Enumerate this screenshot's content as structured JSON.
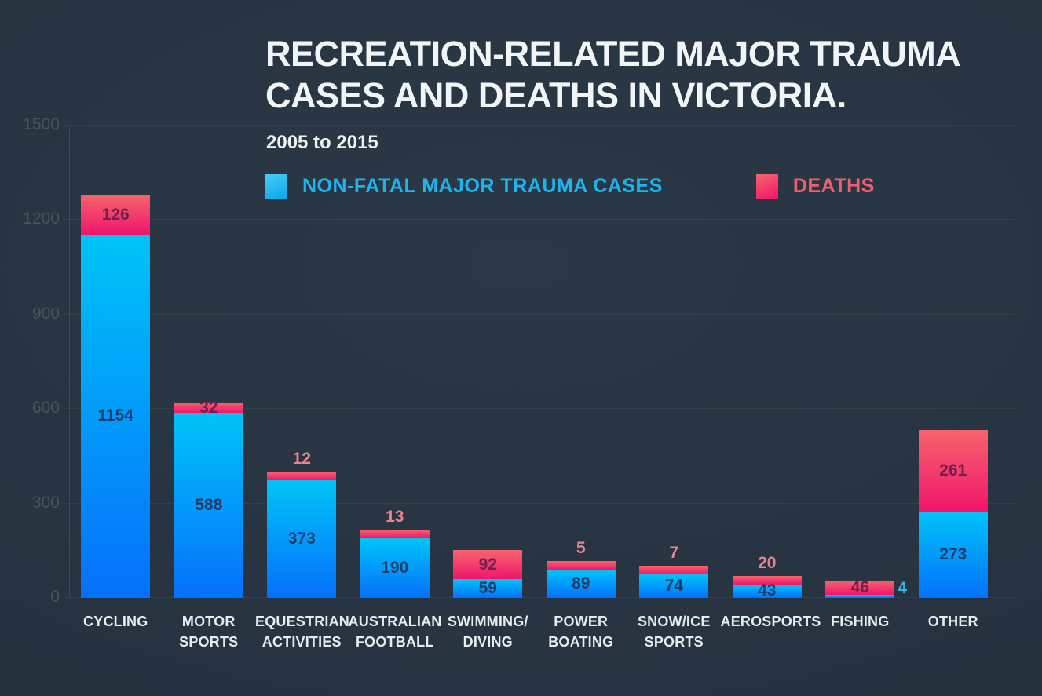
{
  "title": {
    "line1": "RECREATION-RELATED MAJOR TRAUMA",
    "line2": "CASES AND DEATHS IN VICTORIA."
  },
  "subtitle": "2005 to 2015",
  "legend": {
    "cases_label": "NON-FATAL MAJOR TRAUMA CASES",
    "deaths_label": "DEATHS"
  },
  "colors": {
    "background": "#273340",
    "cases_top": "#00c4f8",
    "cases_bottom": "#0570fb",
    "deaths_top": "#f6646c",
    "deaths_bottom": "#f1156c",
    "cases_text": "#1cb4ea",
    "deaths_text": "#f05f6f",
    "label_in_blue": "#1d3e6b",
    "label_in_pink": "#6e2150",
    "label_above": "#e8848e",
    "axis_label": "#46545f",
    "category_label": "#e7ecef"
  },
  "chart_data": {
    "type": "bar",
    "stacked": true,
    "title": "RECREATION-RELATED MAJOR TRAUMA CASES AND DEATHS IN VICTORIA.",
    "subtitle": "2005 to 2015",
    "xlabel": "",
    "ylabel": "",
    "ylim": [
      0,
      1500
    ],
    "y_ticks": [
      0,
      300,
      600,
      900,
      1200,
      1500
    ],
    "grid": true,
    "legend_position": "top",
    "categories": [
      "CYCLING",
      "MOTOR SPORTS",
      "EQUESTRIAN ACTIVITIES",
      "AUSTRALIAN FOOTBALL",
      "SWIMMING/DIVING",
      "POWER BOATING",
      "SNOW/ICE SPORTS",
      "AEROSPORTS",
      "FISHING",
      "OTHER"
    ],
    "category_lines": [
      [
        "CYCLING"
      ],
      [
        "MOTOR",
        "SPORTS"
      ],
      [
        "EQUESTRIAN",
        "ACTIVITIES"
      ],
      [
        "AUSTRALIAN",
        "FOOTBALL"
      ],
      [
        "SWIMMING/",
        "DIVING"
      ],
      [
        "POWER",
        "BOATING"
      ],
      [
        "SNOW/ICE",
        "SPORTS"
      ],
      [
        "AEROSPORTS"
      ],
      [
        "FISHING"
      ],
      [
        "OTHER"
      ]
    ],
    "series": [
      {
        "name": "NON-FATAL MAJOR TRAUMA CASES",
        "values": [
          1154,
          588,
          373,
          190,
          59,
          89,
          74,
          43,
          4,
          273
        ],
        "label_placement": [
          "inside",
          "inside",
          "inside",
          "inside",
          "inside",
          "inside",
          "inside",
          "inside",
          "right",
          "inside"
        ]
      },
      {
        "name": "DEATHS",
        "values": [
          126,
          32,
          12,
          13,
          92,
          5,
          7,
          20,
          46,
          261
        ],
        "label_placement": [
          "inside",
          "inside",
          "above",
          "above",
          "inside",
          "above",
          "above",
          "above",
          "inside",
          "inside"
        ]
      }
    ]
  }
}
